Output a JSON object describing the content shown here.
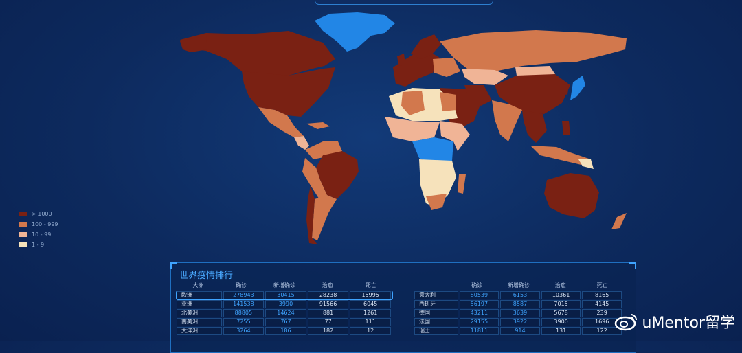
{
  "colors": {
    "gt1000": "#7a2113",
    "c100_999": "#d2784d",
    "c10_99": "#f0b496",
    "c1_9": "#f6e2bb",
    "nodata": "#2286e6",
    "accent": "#3fa4ff"
  },
  "legend": [
    {
      "label": "> 1000",
      "color": "#7a2113"
    },
    {
      "label": "100 - 999",
      "color": "#d2784d"
    },
    {
      "label": "10 - 99",
      "color": "#f0b496"
    },
    {
      "label": "1 - 9",
      "color": "#f6e2bb"
    }
  ],
  "panel": {
    "title": "世界疫情排行",
    "left_headers": [
      "大洲",
      "确诊",
      "新增确诊",
      "治愈",
      "死亡"
    ],
    "left_rows": [
      [
        "欧洲",
        "278943",
        "30415",
        "28238",
        "15995"
      ],
      [
        "亚洲",
        "141538",
        "3990",
        "91566",
        "6045"
      ],
      [
        "北美洲",
        "88805",
        "14624",
        "881",
        "1261"
      ],
      [
        "南美洲",
        "7255",
        "767",
        "77",
        "111"
      ],
      [
        "大洋洲",
        "3264",
        "186",
        "182",
        "12"
      ]
    ],
    "right_headers": [
      "",
      "确诊",
      "新增确诊",
      "治愈",
      "死亡"
    ],
    "right_rows": [
      [
        "意大利",
        "80539",
        "6153",
        "10361",
        "8165"
      ],
      [
        "西班牙",
        "56197",
        "8587",
        "7015",
        "4145"
      ],
      [
        "德国",
        "43211",
        "3639",
        "5678",
        "239"
      ],
      [
        "法国",
        "29155",
        "3922",
        "3900",
        "1696"
      ],
      [
        "瑞士",
        "11811",
        "914",
        "131",
        "122"
      ]
    ]
  },
  "watermark": {
    "text": "uMentor留学",
    "icon": "weibo-icon"
  }
}
